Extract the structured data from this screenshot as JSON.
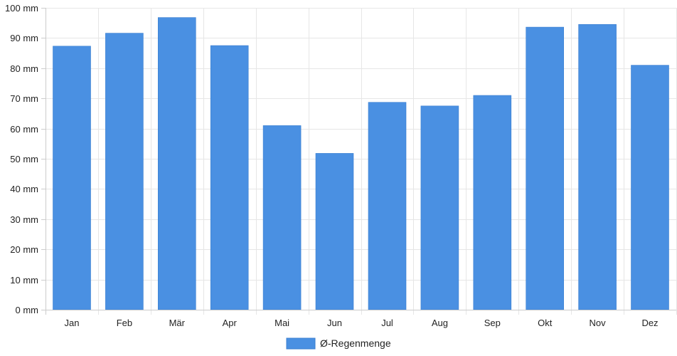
{
  "chart_data": {
    "type": "bar",
    "categories": [
      "Jan",
      "Feb",
      "Mär",
      "Apr",
      "Mai",
      "Jun",
      "Jul",
      "Aug",
      "Sep",
      "Okt",
      "Nov",
      "Dez"
    ],
    "series": [
      {
        "name": "Ø-Regenmenge",
        "values": [
          87.3,
          91.6,
          96.8,
          87.5,
          61.0,
          51.8,
          68.7,
          67.5,
          71.0,
          93.6,
          94.5,
          81.0
        ],
        "color": "#4a90e2"
      }
    ],
    "yticks": [
      "0 mm",
      "10 mm",
      "20 mm",
      "30 mm",
      "40 mm",
      "50 mm",
      "60 mm",
      "70 mm",
      "80 mm",
      "90 mm",
      "100 mm"
    ],
    "ylim": [
      0,
      100
    ],
    "grid": true,
    "legend": "bottom-center"
  }
}
